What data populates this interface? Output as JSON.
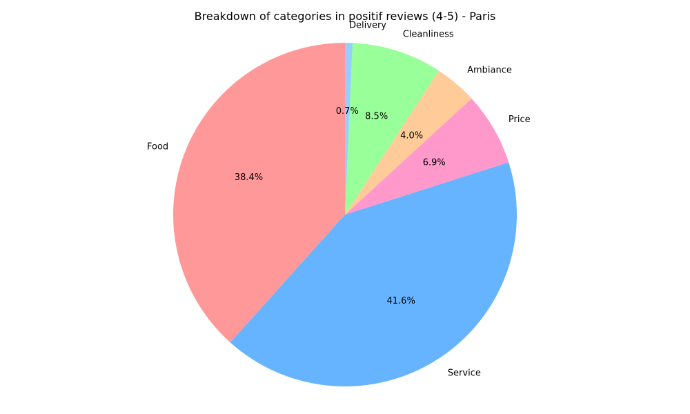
{
  "chart_data": {
    "type": "pie",
    "title": "Breakdown of categories in positif reviews (4-5) - Paris",
    "categories": [
      "Food",
      "Service",
      "Price",
      "Ambiance",
      "Cleanliness",
      "Delivery"
    ],
    "values": [
      38.4,
      41.6,
      6.9,
      4.0,
      8.5,
      0.7
    ],
    "percent_labels": [
      "38.4%",
      "41.6%",
      "6.9%",
      "4.0%",
      "8.5%",
      "0.7%"
    ],
    "colors": [
      "#ff9999",
      "#66b3ff",
      "#ff99cc",
      "#ffcc99",
      "#99ff99",
      "#99ccff"
    ],
    "start_angle_deg": 90,
    "direction": "counterclockwise",
    "legend": "none"
  }
}
